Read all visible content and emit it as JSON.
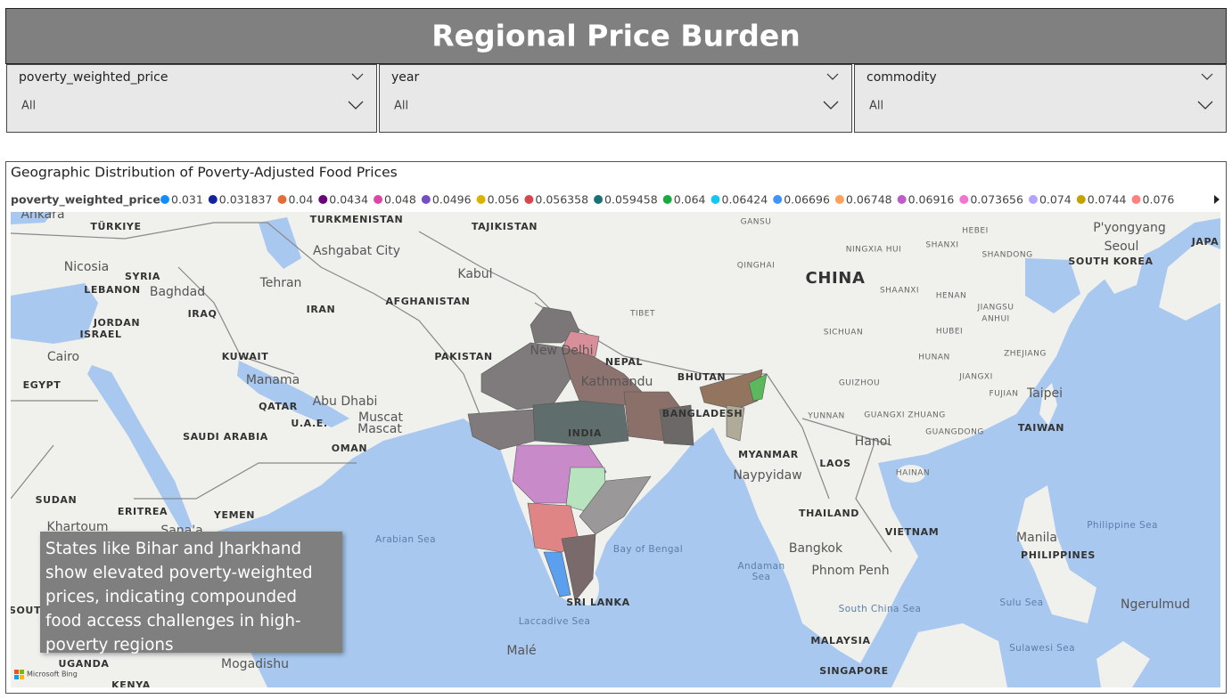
{
  "header": {
    "title": "Regional Price Burden"
  },
  "filters": [
    {
      "label": "poverty_weighted_price",
      "value": "All"
    },
    {
      "label": "year",
      "value": "All"
    },
    {
      "label": "commodity",
      "value": "All"
    }
  ],
  "map": {
    "title": "Geographic Distribution of Poverty-Adjusted Food Prices",
    "legend": {
      "title": "poverty_weighted_price",
      "items": [
        {
          "value": 0.031,
          "color": "#118DFF"
        },
        {
          "value": 0.031837,
          "color": "#12239E"
        },
        {
          "value": 0.04,
          "color": "#E66C37"
        },
        {
          "value": 0.0434,
          "color": "#6B007B"
        },
        {
          "value": 0.048,
          "color": "#E044A7"
        },
        {
          "value": 0.0496,
          "color": "#744EC2"
        },
        {
          "value": 0.056,
          "color": "#D9B300"
        },
        {
          "value": 0.056358,
          "color": "#D64550"
        },
        {
          "value": 0.059458,
          "color": "#197278"
        },
        {
          "value": 0.064,
          "color": "#1AAB40"
        },
        {
          "value": 0.06424,
          "color": "#15C6F4"
        },
        {
          "value": 0.06696,
          "color": "#4092FF"
        },
        {
          "value": 0.06748,
          "color": "#FFA058"
        },
        {
          "value": 0.06916,
          "color": "#BE5DC9"
        },
        {
          "value": 0.073656,
          "color": "#F472D0"
        },
        {
          "value": 0.074,
          "color": "#B5A1FF"
        },
        {
          "value": 0.0744,
          "color": "#C4A200"
        },
        {
          "value": 0.076,
          "color": "#FF8080"
        }
      ]
    },
    "places": [
      "Ankara",
      "TÜRKIYE",
      "TURKMENISTAN",
      "TAJIKISTAN",
      "GANSU",
      "HEBEI",
      "P'yongyang",
      "JAPA",
      "Seoul",
      "Nicosia",
      "SYRIA",
      "Ashgabat City",
      "NINGXIA HUI",
      "SHANXI",
      "SHANDONG",
      "SOUTH KOREA",
      "LEBANON",
      "Baghdad",
      "Tehran",
      "Kabul",
      "QINGHAI",
      "CHINA",
      "IRAQ",
      "IRAN",
      "AFGHANISTAN",
      "SHAANXI",
      "HENAN",
      "JORDAN",
      "ISRAEL",
      "TIBET",
      "JIANGSU",
      "ANHUI",
      "SICHUAN",
      "HUBEI",
      "Cairo",
      "KUWAIT",
      "PAKISTAN",
      "New Delhi",
      "NEPAL",
      "ZHEJIANG",
      "HUNAN",
      "EGYPT",
      "Manama",
      "Kathmandu",
      "BHUTAN",
      "GUIZHOU",
      "JIANGXI",
      "FUJIAN",
      "Taipei",
      "QATAR",
      "Abu Dhabi",
      "BANGLADESH",
      "YUNNAN",
      "GUANGXI ZHUANG",
      "U.A.E.",
      "Muscat",
      "Mascat",
      "INDIA",
      "GUANGDONG",
      "TAIWAN",
      "SAUDI ARABIA",
      "OMAN",
      "Hanoi",
      "MYANMAR",
      "LAOS",
      "Naypyidaw",
      "HAINAN",
      "SUDAN",
      "ERITREA",
      "YEMEN",
      "Khartoum",
      "Sana'a",
      "THAILAND",
      "VIETNAM",
      "Philippine Sea",
      "Arabian Sea",
      "Bay of Bengal",
      "Bangkok",
      "Manila",
      "PHILIPPINES",
      "Andaman Sea",
      "Phnom Penh",
      "SRI LANKA",
      "South China Sea",
      "Sulu Sea",
      "Ngerulmud",
      "Laccadive Sea",
      "MALAYSIA",
      "Malé",
      "Sulawesi Sea",
      "UGANDA",
      "Mogadishu",
      "SINGAPORE",
      "KENYA",
      "SOUT"
    ],
    "annotation": "States like Bihar and Jharkhand show elevated poverty-weighted prices, indicating compounded food access challenges in high-poverty regions",
    "attribution": "Microsoft Bing"
  }
}
